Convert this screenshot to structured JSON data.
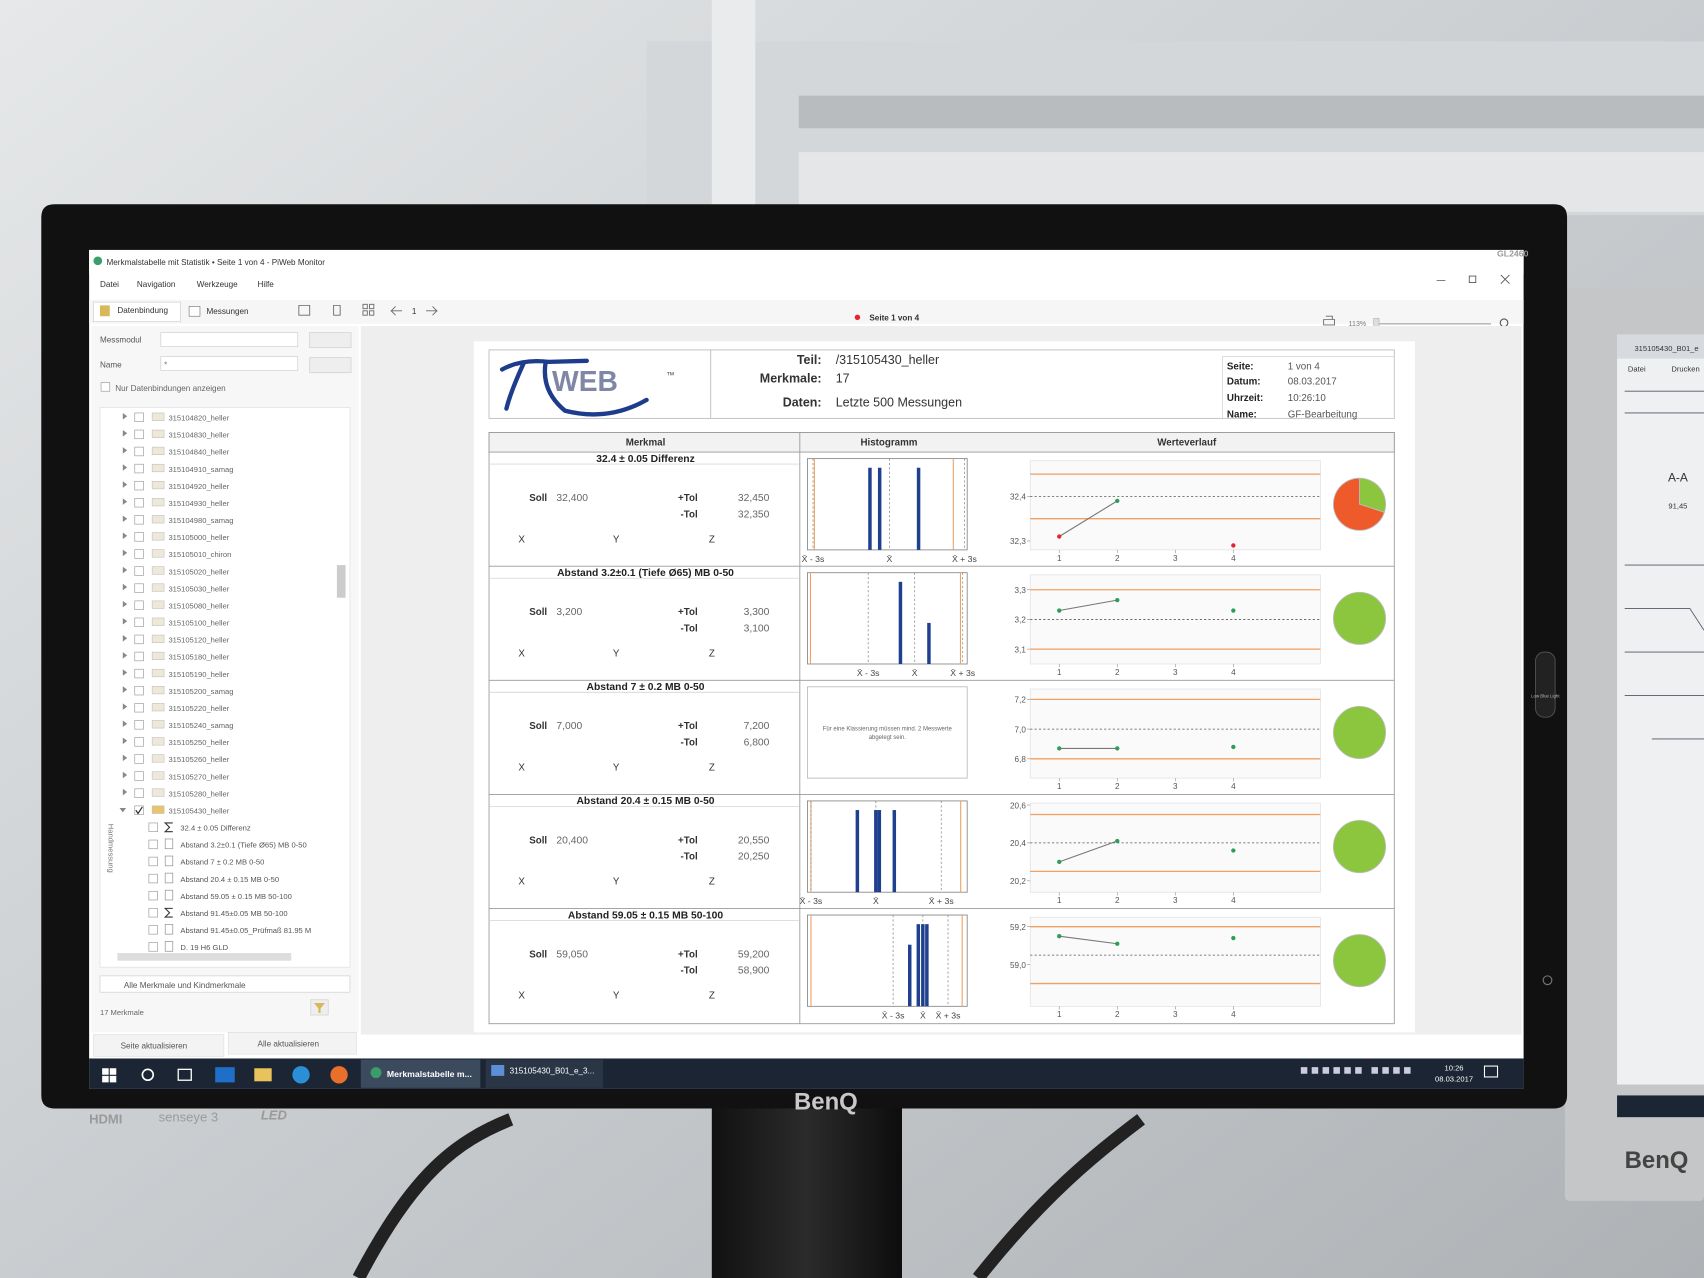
{
  "window": {
    "title": "Merkmalstabelle mit Statistik • Seite 1 von 4 - PiWeb Monitor",
    "menu": [
      "Datei",
      "Navigation",
      "Werkzeuge",
      "Hilfe"
    ],
    "tabs": [
      "Datenbindung",
      "Messungen"
    ],
    "page_input": "1",
    "page_status": "Seite 1 von 4",
    "zoom": "113%"
  },
  "sidebar": {
    "messmodul_label": "Messmodul",
    "name_label": "Name",
    "name_value": "*",
    "filter_checkbox": "Nur Datenbindungen anzeigen",
    "tree": [
      "315104820_heller",
      "315104830_heller",
      "315104840_heller",
      "315104910_samag",
      "315104920_heller",
      "315104930_heller",
      "315104980_samag",
      "315105000_heller",
      "315105010_chiron",
      "315105020_heller",
      "315105030_heller",
      "315105080_heller",
      "315105100_heller",
      "315105120_heller",
      "315105180_heller",
      "315105190_heller",
      "315105200_samag",
      "315105220_heller",
      "315105240_samag",
      "315105250_heller",
      "315105260_heller",
      "315105270_heller",
      "315105280_heller",
      "315105430_heller"
    ],
    "children": [
      {
        "label": "32.4 ± 0.05 Differenz",
        "icon": "sum"
      },
      {
        "label": "Abstand 3.2±0.1 (Tiefe Ø65) MB 0-50",
        "icon": "doc"
      },
      {
        "label": "Abstand 7 ± 0.2 MB 0-50",
        "icon": "doc"
      },
      {
        "label": "Abstand 20.4 ± 0.15 MB 0-50",
        "icon": "doc"
      },
      {
        "label": "Abstand 59.05 ± 0.15 MB 50-100",
        "icon": "doc"
      },
      {
        "label": "Abstand 91.45±0.05 MB 50-100",
        "icon": "sum"
      },
      {
        "label": "Abstand 91.45±0.05_Prüfmaß 81.95 M",
        "icon": "doc"
      },
      {
        "label": "D. 19 H6 GLD",
        "icon": "doc"
      }
    ],
    "vertical_tab": "Handmessung",
    "scope": "Alle Merkmale und Kindmerkmale",
    "count": "17 Merkmale",
    "refresh_page": "Seite aktualisieren",
    "refresh_all": "Alle aktualisieren"
  },
  "report": {
    "logo": "WEB",
    "logo_tm": "™",
    "header": {
      "teil_label": "Teil:",
      "teil": "/315105430_heller",
      "merkmale_label": "Merkmale:",
      "merkmale": "17",
      "daten_label": "Daten:",
      "daten": "Letzte 500 Messungen",
      "seite_label": "Seite:",
      "seite": "1 von 4",
      "datum_label": "Datum:",
      "datum": "08.03.2017",
      "uhrzeit_label": "Uhrzeit:",
      "uhrzeit": "10:26:10",
      "name_label": "Name:",
      "name": "GF-Bearbeitung"
    },
    "columns": [
      "Merkmal",
      "Histogramm",
      "Werteverlauf"
    ],
    "labels": {
      "soll": "Soll",
      "plus_tol": "+Tol",
      "minus_tol": "-Tol",
      "x": "X",
      "y": "Y",
      "z": "Z"
    },
    "hist_labels": [
      "X̄ - 3s",
      "X̄",
      "X̄ + 3s"
    ],
    "x_ticks": [
      1,
      2,
      3,
      4
    ],
    "xlim": [
      0.5,
      5.5
    ],
    "line_color": "#777777",
    "tol_color": "#f0a060",
    "ok_color": "#2e9e55",
    "nok_color": "#e3262c",
    "bar_color": "#1f3f8f",
    "rows": [
      {
        "title": "32.4 ± 0.05 Differenz",
        "soll": {
          "value": 32.4,
          "label": "32,400"
        },
        "plus_tol": {
          "value": 32.45,
          "label": "32,450"
        },
        "minus_tol": {
          "value": 32.35,
          "label": "32,350"
        },
        "histogram": {
          "xlim": [
            32.345,
            32.46
          ],
          "x": [
            32.39,
            32.397,
            32.425
          ],
          "counts": [
            2,
            2,
            2
          ],
          "stats": [
            32.349,
            32.404,
            32.458
          ]
        },
        "trend": {
          "ylim": [
            32.28,
            32.48
          ],
          "yticks": [
            {
              "value": 32.3,
              "label": "32,3"
            },
            {
              "value": 32.4,
              "label": "32,4"
            }
          ],
          "values": [
            32.31,
            32.39,
            null,
            32.29
          ]
        },
        "pie": {
          "values": [
            30,
            70
          ],
          "colors": [
            "#8cc63f",
            "#ee5a2a"
          ]
        }
      },
      {
        "title": "Abstand 3.2±0.1 (Tiefe Ø65) MB 0-50",
        "soll": {
          "value": 3.2,
          "label": "3,200"
        },
        "plus_tol": {
          "value": 3.3,
          "label": "3,300"
        },
        "minus_tol": {
          "value": 3.1,
          "label": "3,100"
        },
        "histogram": {
          "xlim": [
            3.096,
            3.309
          ],
          "x": [
            3.22,
            3.258
          ],
          "counts": [
            2,
            1
          ],
          "stats": [
            3.177,
            3.239,
            3.303
          ]
        },
        "trend": {
          "ylim": [
            3.05,
            3.35
          ],
          "yticks": [
            {
              "value": 3.1,
              "label": "3,1"
            },
            {
              "value": 3.2,
              "label": "3,2"
            },
            {
              "value": 3.3,
              "label": "3,3"
            }
          ],
          "values": [
            3.23,
            3.265,
            null,
            3.23
          ]
        },
        "pie": {
          "values": [
            100
          ],
          "colors": [
            "#8cc63f"
          ]
        }
      },
      {
        "title": "Abstand 7 ± 0.2 MB 0-50",
        "soll": {
          "value": 7,
          "label": "7,000"
        },
        "plus_tol": {
          "value": 7.2,
          "label": "7,200"
        },
        "minus_tol": {
          "value": 6.8,
          "label": "6,800"
        },
        "message": [
          "Für eine Klassierung müssen mind. 2 Messwerte",
          "abgelegt sein."
        ],
        "trend": {
          "ylim": [
            6.67,
            7.27
          ],
          "yticks": [
            {
              "value": 6.8,
              "label": "6,8"
            },
            {
              "value": 7,
              "label": "7,0"
            },
            {
              "value": 7.2,
              "label": "7,2"
            }
          ],
          "values": [
            6.87,
            6.87,
            null,
            6.88
          ]
        },
        "pie": {
          "values": [
            100
          ],
          "colors": [
            "#8cc63f"
          ]
        }
      },
      {
        "title": "Abstand 20.4 ± 0.15 MB 0-50",
        "soll": {
          "value": 20.4,
          "label": "20,400"
        },
        "plus_tol": {
          "value": 20.55,
          "label": "20,550"
        },
        "minus_tol": {
          "value": 20.25,
          "label": "20,250"
        },
        "histogram": {
          "xlim": [
            20.243,
            20.563
          ],
          "x": [
            20.343,
            20.38,
            20.387,
            20.417
          ],
          "counts": [
            1,
            1,
            1,
            1
          ],
          "stats": [
            20.25,
            20.38,
            20.511
          ]
        },
        "trend": {
          "ylim": [
            20.14,
            20.61
          ],
          "yticks": [
            {
              "value": 20.2,
              "label": "20,2"
            },
            {
              "value": 20.4,
              "label": "20,4"
            },
            {
              "value": 20.6,
              "label": "20,6"
            }
          ],
          "values": [
            20.3,
            20.41,
            null,
            20.36
          ]
        },
        "pie": {
          "values": [
            100
          ],
          "colors": [
            "#8cc63f"
          ]
        }
      },
      {
        "title": "Abstand 59.05 ± 0.15 MB 50-100",
        "soll": {
          "value": 59.05,
          "label": "59,050"
        },
        "plus_tol": {
          "value": 59.2,
          "label": "59,200"
        },
        "minus_tol": {
          "value": 58.9,
          "label": "58,900"
        },
        "histogram": {
          "xlim": [
            58.893,
            59.21
          ],
          "x": [
            59.096,
            59.113,
            59.122,
            59.13
          ],
          "counts": [
            3,
            4,
            4,
            4
          ],
          "stats": [
            59.063,
            59.122,
            59.172
          ]
        },
        "trend": {
          "ylim": [
            58.78,
            59.25
          ],
          "yticks": [
            {
              "value": 59,
              "label": "59,0"
            },
            {
              "value": 59.2,
              "label": "59,2"
            }
          ],
          "values": [
            59.15,
            59.11,
            null,
            59.14
          ]
        },
        "pie": {
          "values": [
            100
          ],
          "colors": [
            "#8cc63f"
          ]
        }
      }
    ]
  },
  "taskbar": {
    "apps": [
      "Merkmalstabelle m...",
      "315105430_B01_e_3..."
    ],
    "time": "10:26",
    "date": "08.03.2017"
  },
  "monitor": {
    "model": "GL2460",
    "brand": "BenQ",
    "hdmi": "HDMI",
    "senseye": "senseye 3",
    "led": "LED",
    "low_blue": "Low Blue Light"
  },
  "right_monitor": {
    "title": "315105430_B01_e",
    "menu": [
      "Datei",
      "Drucken"
    ],
    "section": "A-A",
    "dim": "91,45",
    "brand": "BenQ"
  }
}
